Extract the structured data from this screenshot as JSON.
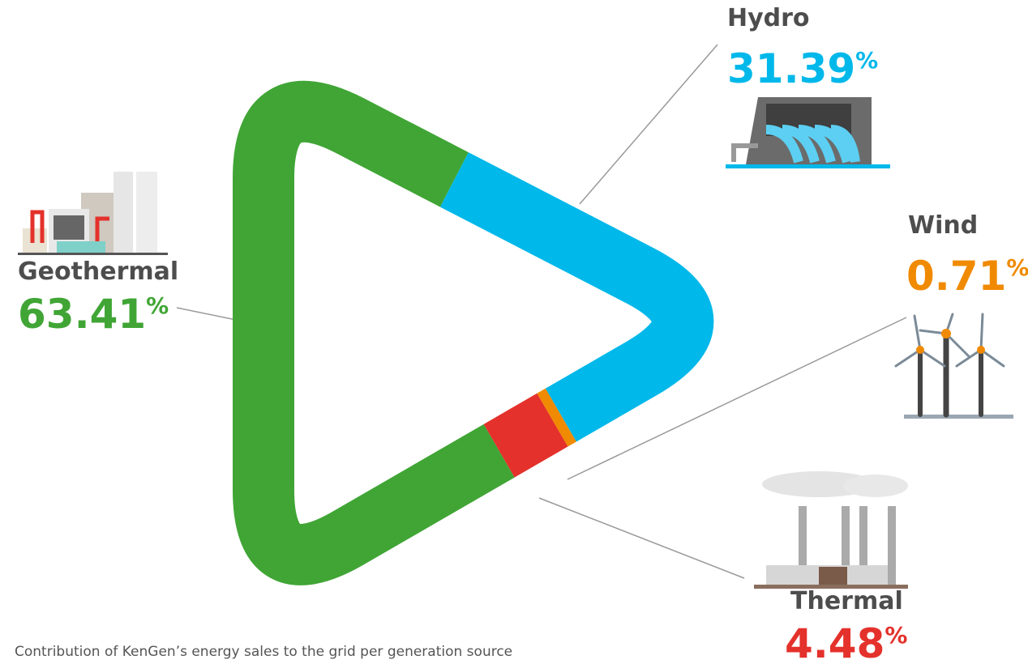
{
  "chart_data": {
    "type": "donut",
    "title": "Contribution of KenGen’s energy sales to the grid per generation source",
    "categories": [
      "Geothermal",
      "Hydro",
      "Wind",
      "Thermal"
    ],
    "values": [
      63.41,
      31.39,
      0.71,
      4.48
    ],
    "value_labels": [
      "63.41%",
      "31.39%",
      "0.71%",
      "4.48%"
    ],
    "colors": [
      "#40a535",
      "#00b8ea",
      "#f08a00",
      "#e4312b"
    ]
  }
}
